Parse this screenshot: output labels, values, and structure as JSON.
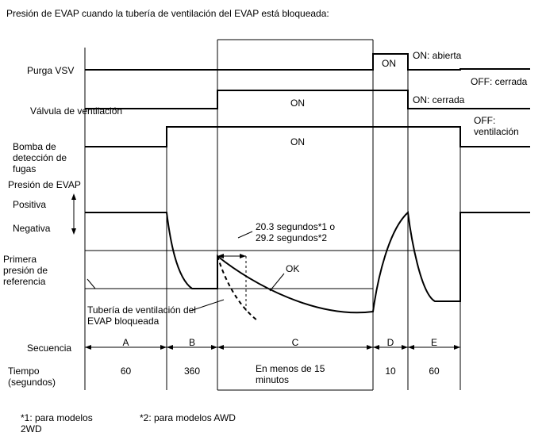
{
  "title": "Presión de EVAP cuando la tubería de ventilación del EVAP está bloqueada:",
  "rows": {
    "purga": "Purga VSV",
    "valvula": "Válvula de ventilación",
    "bomba_1": "Bomba de",
    "bomba_2": "detección de",
    "bomba_3": "fugas",
    "presion": "Presión de EVAP",
    "positiva": "Positiva",
    "negativa": "Negativa",
    "ref_1": "Primera",
    "ref_2": "presión de",
    "ref_3": "referencia"
  },
  "signals": {
    "on_purga": "ON",
    "on_valvula": "ON",
    "on_bomba": "ON",
    "on_abierta": "ON: abierta",
    "off_cerrada": "OFF: cerrada",
    "on_cerrada": "ON: cerrada",
    "off_label": "OFF:",
    "ventilacion": "ventilación"
  },
  "annotations": {
    "time_1": "20.3 segundos*1 o",
    "time_2": "29.2 segundos*2",
    "ok": "OK",
    "blocked_1": "Tubería de ventilación del",
    "blocked_2": "EVAP bloqueada"
  },
  "sequence": {
    "label": "Secuencia",
    "steps": [
      "A",
      "B",
      "C",
      "D",
      "E"
    ]
  },
  "time": {
    "label_1": "Tiempo",
    "label_2": "(segundos)",
    "values": [
      "60",
      "360",
      "En menos de 15",
      "10",
      "60"
    ],
    "c_line2": "minutos"
  },
  "footnotes": {
    "fn1_1": "*1: para modelos",
    "fn1_2": "2WD",
    "fn2": "*2: para modelos AWD"
  }
}
